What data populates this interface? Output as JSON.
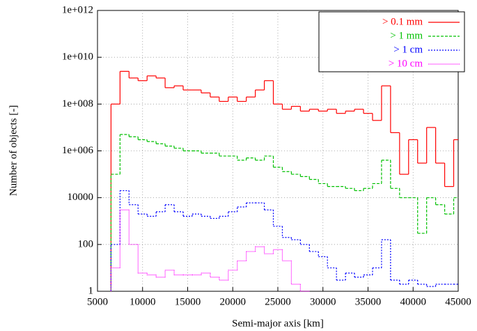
{
  "chart_data": {
    "type": "step",
    "x_label": "Semi-major axis [km]",
    "y_label": "Number of objects [-]",
    "xlim": [
      5000,
      45000
    ],
    "xticks": [
      5000,
      10000,
      15000,
      20000,
      25000,
      30000,
      35000,
      40000,
      45000
    ],
    "ylim": [
      1,
      1000000000000.0
    ],
    "log_y": true,
    "grid": true,
    "legend": "upper right",
    "yticks": [
      1,
      100,
      10000,
      {
        "value": 1000000.0,
        "label": "1e+006"
      },
      {
        "value": 100000000.0,
        "label": "1e+008"
      },
      {
        "value": 10000000000.0,
        "label": "1e+010"
      },
      {
        "value": 1000000000000.0,
        "label": "1e+012"
      }
    ],
    "x": [
      6500,
      7500,
      8500,
      9500,
      10500,
      11500,
      12500,
      13500,
      14500,
      15500,
      16500,
      17500,
      18500,
      19500,
      20500,
      21500,
      22500,
      23500,
      24500,
      25500,
      26500,
      27500,
      28500,
      29500,
      30500,
      31500,
      32500,
      33500,
      34500,
      35500,
      36500,
      37500,
      38500,
      39500,
      40500,
      41500,
      42500,
      43500,
      44500
    ],
    "series": [
      {
        "name": "> 0.1 mm",
        "color": "#ff0000",
        "dash": "none",
        "values": [
          100000000.0,
          2500000000.0,
          1300000000.0,
          1000000000.0,
          1600000000.0,
          1300000000.0,
          500000000.0,
          600000000.0,
          400000000.0,
          400000000.0,
          300000000.0,
          200000000.0,
          130000000.0,
          200000000.0,
          130000000.0,
          200000000.0,
          400000000.0,
          1000000000.0,
          100000000.0,
          60000000.0,
          80000000.0,
          50000000.0,
          60000000.0,
          50000000.0,
          60000000.0,
          40000000.0,
          50000000.0,
          60000000.0,
          40000000.0,
          20000000.0,
          600000000.0,
          6000000.0,
          100000.0,
          3000000.0,
          300000.0,
          10000000.0,
          300000.0,
          30000.0,
          3000000.0
        ]
      },
      {
        "name": "> 1 mm",
        "color": "#00c000",
        "dash": "4,2",
        "values": [
          100000.0,
          5000000.0,
          4000000.0,
          3000000.0,
          2500000.0,
          2000000.0,
          1600000.0,
          1300000.0,
          1000000.0,
          1000000.0,
          800000.0,
          800000.0,
          600000.0,
          600000.0,
          400000.0,
          500000.0,
          400000.0,
          600000.0,
          200000.0,
          130000.0,
          100000.0,
          80000.0,
          60000.0,
          40000.0,
          30000.0,
          30000.0,
          25000.0,
          20000.0,
          25000.0,
          40000.0,
          400000.0,
          25000.0,
          10000.0,
          10000.0,
          300,
          10000.0,
          5000,
          2000,
          10000.0
        ]
      },
      {
        "name": "> 1 cm",
        "color": "#0000ff",
        "dash": "2,2",
        "values": [
          100,
          20000.0,
          5000,
          2000,
          1600,
          2500,
          5000,
          2500,
          1600,
          2000,
          1600,
          1300,
          1600,
          2500,
          4000,
          6000,
          6000,
          3000,
          600,
          200,
          160,
          100,
          50,
          30,
          10,
          3,
          6,
          4,
          5,
          10,
          160,
          3,
          2,
          3,
          2,
          1.6,
          2,
          2,
          2
        ]
      },
      {
        "name": "> 10 cm",
        "color": "#ff00ff",
        "dash": "1,1",
        "values": [
          10,
          3000,
          100,
          6,
          5,
          4,
          8,
          5,
          5,
          5,
          6,
          4,
          3,
          8,
          20,
          50,
          80,
          40,
          60,
          20,
          2,
          1,
          null,
          null,
          null,
          null,
          null,
          null,
          null,
          null,
          null,
          null,
          null,
          null,
          null,
          null,
          null,
          null,
          null
        ]
      }
    ]
  }
}
